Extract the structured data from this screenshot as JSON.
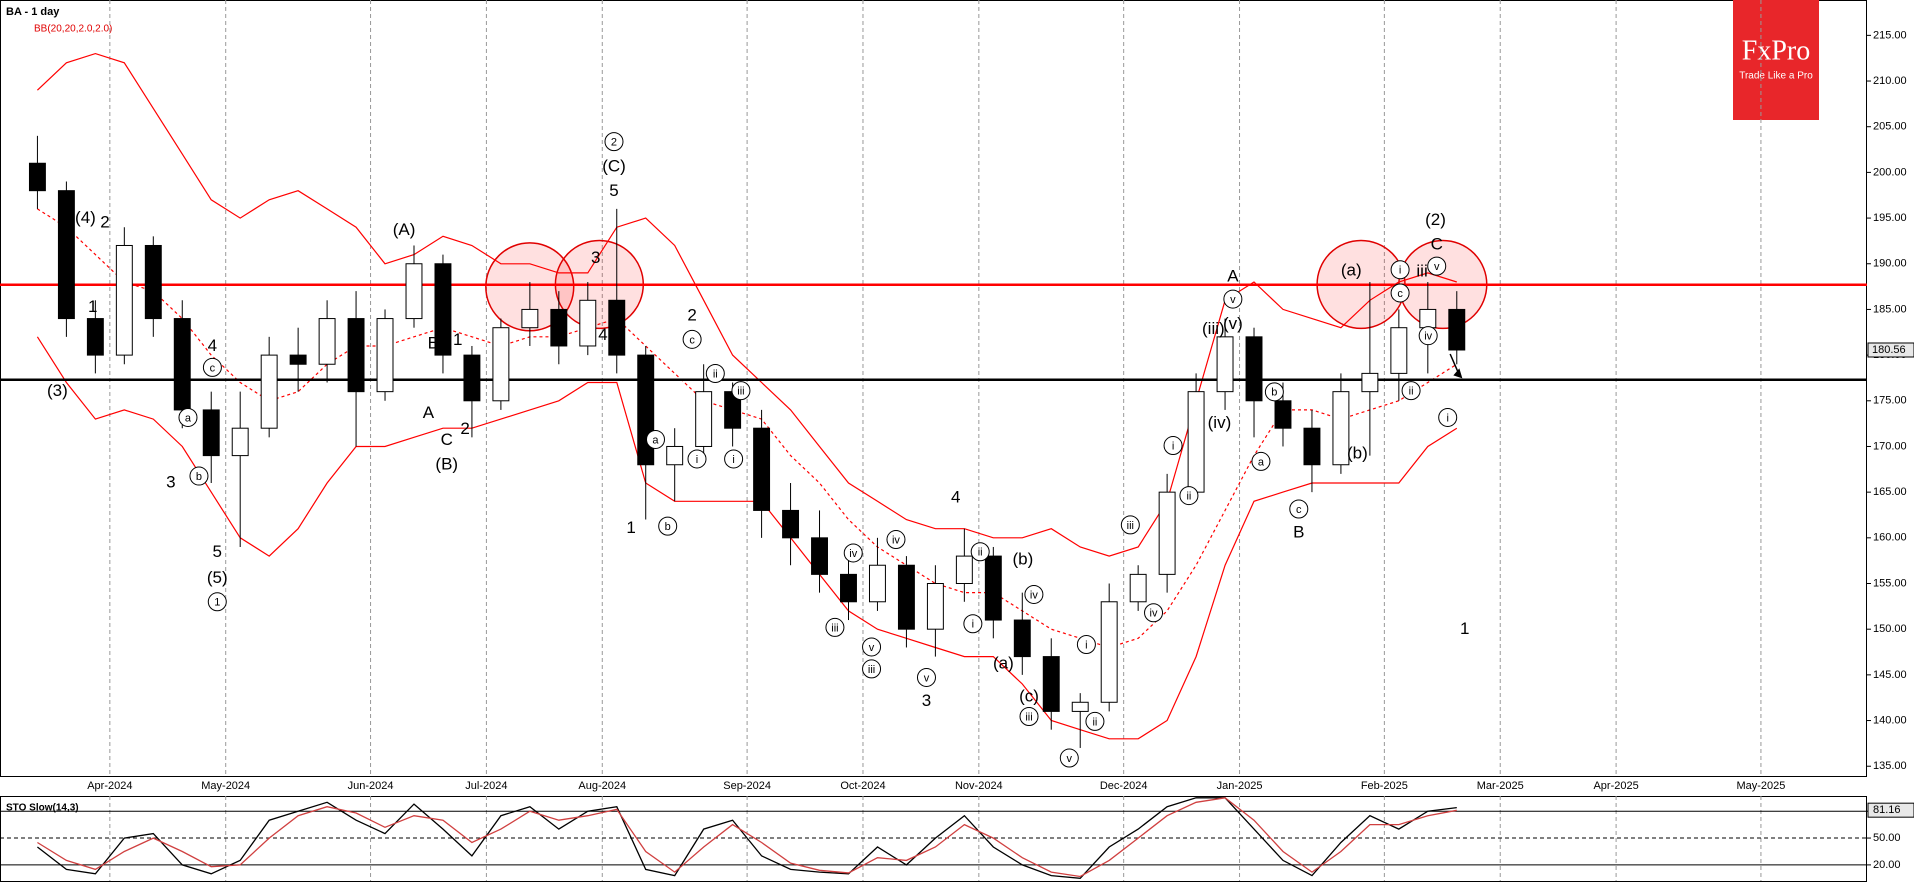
{
  "chart_data": [
    {
      "type": "candlestick",
      "title": "BA - 1 day",
      "indicator_label": "BB(20,20,2.0,2.0)",
      "logo": {
        "name": "FxPro",
        "tagline": "Trade Like a Pro"
      },
      "categories": [
        null,
        null,
        null,
        "Apr-2024",
        null,
        null,
        null,
        "May-2024",
        null,
        null,
        null,
        null,
        "Jun-2024",
        null,
        null,
        null,
        "Jul-2024",
        null,
        null,
        null,
        "Aug-2024",
        null,
        null,
        null,
        null,
        "Sep-2024",
        null,
        null,
        null,
        "Oct-2024",
        null,
        null,
        null,
        "Nov-2024",
        null,
        null,
        null,
        null,
        "Dec-2024",
        null,
        null,
        null,
        "Jan-2025",
        null,
        null,
        null,
        null,
        "Feb-2025",
        null,
        null,
        null,
        "Mar-2025",
        null,
        null,
        null,
        "Apr-2025",
        null,
        null,
        null,
        null,
        "May-2025",
        null
      ],
      "open": [
        201,
        198,
        184,
        180,
        192,
        184,
        174,
        169,
        172,
        180,
        179,
        184,
        176,
        184,
        190,
        180,
        175,
        183,
        185,
        181,
        186,
        180,
        168,
        170,
        176,
        172,
        163,
        160,
        156,
        153,
        157,
        150,
        155,
        158,
        151,
        147,
        141,
        142,
        153,
        156,
        165,
        176,
        182,
        175,
        172,
        168,
        176,
        178,
        183,
        185,
        null,
        null,
        null,
        null,
        null,
        null,
        null,
        null,
        null,
        null,
        null,
        null
      ],
      "high": [
        204,
        199,
        186,
        194,
        193,
        186,
        176,
        176,
        182,
        183,
        186,
        187,
        185,
        192,
        191,
        181,
        184,
        188,
        187,
        188,
        196,
        181,
        172,
        179,
        177,
        174,
        166,
        163,
        158,
        160,
        158,
        157,
        161,
        159,
        154,
        149,
        143,
        155,
        157,
        167,
        178,
        184,
        183,
        177,
        174,
        178,
        188,
        185,
        188,
        187,
        null,
        null,
        null,
        null,
        null,
        null,
        null,
        null,
        null,
        null,
        null,
        null
      ],
      "low": [
        196,
        182,
        178,
        179,
        182,
        172,
        166,
        159,
        171,
        176,
        177,
        170,
        175,
        183,
        178,
        171,
        174,
        181,
        179,
        180,
        178,
        162,
        164,
        168,
        170,
        160,
        157,
        154,
        151,
        152,
        148,
        147,
        153,
        149,
        145,
        139,
        137,
        141,
        152,
        154,
        164,
        174,
        171,
        170,
        165,
        167,
        169,
        175,
        178,
        179,
        null,
        null,
        null,
        null,
        null,
        null,
        null,
        null,
        null,
        null,
        null,
        null
      ],
      "close": [
        198,
        184,
        180,
        192,
        184,
        174,
        169,
        172,
        180,
        179,
        184,
        176,
        184,
        190,
        180,
        175,
        183,
        185,
        181,
        186,
        180,
        168,
        170,
        176,
        172,
        163,
        160,
        156,
        153,
        157,
        150,
        155,
        158,
        151,
        147,
        141,
        142,
        153,
        156,
        165,
        176,
        182,
        175,
        172,
        168,
        176,
        178,
        183,
        185,
        180.56,
        null,
        null,
        null,
        null,
        null,
        null,
        null,
        null,
        null,
        null,
        null,
        null
      ],
      "bands": {
        "color": "#ff0000",
        "upper": [
          209,
          212,
          213,
          212,
          207,
          202,
          197,
          195,
          197,
          198,
          196,
          194,
          190,
          191,
          193,
          192,
          190,
          190,
          189,
          189,
          194,
          195,
          192,
          186,
          180,
          177,
          174,
          170,
          166,
          164,
          162,
          161,
          161,
          160,
          160,
          161,
          159,
          158,
          159,
          164,
          175,
          186,
          188,
          185,
          184,
          183,
          186,
          188,
          189,
          188,
          null,
          null,
          null,
          null,
          null,
          null,
          null,
          null,
          null,
          null,
          null,
          null
        ],
        "middle": [
          196,
          194,
          191,
          188,
          187,
          184,
          180,
          177,
          175,
          176,
          179,
          181,
          181,
          182,
          183,
          182,
          181,
          182,
          182,
          183,
          184,
          181,
          178,
          175,
          174,
          173,
          169,
          166,
          162,
          159,
          157,
          155,
          154,
          154,
          152,
          150,
          149,
          148,
          149,
          152,
          157,
          163,
          169,
          174,
          174,
          173,
          174,
          175,
          177,
          179,
          null,
          null,
          null,
          null,
          null,
          null,
          null,
          null,
          null,
          null,
          null,
          null
        ],
        "lower": [
          182,
          177,
          173,
          174,
          173,
          170,
          165,
          160,
          158,
          161,
          166,
          170,
          170,
          171,
          172,
          172,
          173,
          174,
          175,
          177,
          177,
          166,
          164,
          164,
          164,
          164,
          160,
          156,
          152,
          150,
          149,
          148,
          147,
          147,
          144,
          140,
          139,
          138,
          138,
          140,
          147,
          157,
          164,
          165,
          166,
          166,
          166,
          166,
          170,
          172,
          null,
          null,
          null,
          null,
          null,
          null,
          null,
          null,
          null,
          null,
          null,
          null
        ]
      },
      "levels": [
        {
          "value": 187.7,
          "color": "#ff0000"
        },
        {
          "value": 177.3,
          "color": "#000000"
        }
      ],
      "last_value": 180.56,
      "ylim": [
        133.93,
        218.87
      ],
      "yticks": [
        {
          "value": 135,
          "label": "135.00"
        },
        {
          "value": 140,
          "label": "140.00"
        },
        {
          "value": 145,
          "label": "145.00"
        },
        {
          "value": 150,
          "label": "150.00"
        },
        {
          "value": 155,
          "label": "155.00"
        },
        {
          "value": 160,
          "label": "160.00"
        },
        {
          "value": 165,
          "label": "165.00"
        },
        {
          "value": 170,
          "label": "170.00"
        },
        {
          "value": 175,
          "label": "175.00"
        },
        {
          "value": 180,
          "label": "180.00"
        },
        {
          "value": 185,
          "label": "185.00"
        },
        {
          "value": 190,
          "label": "190.00"
        },
        {
          "value": 195,
          "label": "195.00"
        },
        {
          "value": 200,
          "label": "200.00"
        },
        {
          "value": 205,
          "label": "205.00"
        },
        {
          "value": 210,
          "label": "210.00"
        },
        {
          "value": 215,
          "label": "215.00"
        }
      ],
      "annotations": [
        "(3)",
        "(4)",
        "2",
        "1",
        "a",
        "b",
        "3",
        "4",
        "c",
        "5",
        "(5)",
        "1",
        "(A)",
        "B",
        "1",
        "A",
        "C",
        "2",
        "(B)",
        "3",
        "4",
        "2",
        "(C)",
        "5",
        "1",
        "a",
        "b",
        "2",
        "c",
        "i",
        "ii",
        "iii",
        "i",
        "iv",
        "iii",
        "v",
        "iii",
        "iv",
        "v",
        "3",
        "4",
        "ii",
        "i",
        "(b)",
        "iv",
        "(a)",
        "(c)",
        "iii",
        "i",
        "ii",
        "v",
        "iii",
        "iv",
        "i",
        "ii",
        "(iv)",
        "(iii)",
        "(v)",
        "A",
        "v",
        "b",
        "a",
        "c",
        "B",
        "(a)",
        "(b)",
        "(2)",
        "C",
        "v",
        "i",
        "iii",
        "c",
        "iv",
        "ii",
        "i",
        "1"
      ]
    },
    {
      "type": "line",
      "title": "STO Slow(14,3)",
      "series": [
        {
          "name": "%K",
          "color": "#000000",
          "values": [
            40,
            15,
            10,
            50,
            55,
            20,
            10,
            25,
            70,
            80,
            90,
            70,
            55,
            88,
            60,
            30,
            75,
            85,
            60,
            80,
            85,
            15,
            8,
            60,
            70,
            30,
            15,
            12,
            10,
            40,
            20,
            50,
            75,
            40,
            20,
            8,
            5,
            40,
            60,
            85,
            95,
            95,
            60,
            25,
            8,
            45,
            75,
            60,
            80,
            84,
            null,
            null,
            null,
            null,
            null,
            null,
            null,
            null,
            null,
            null,
            null,
            null
          ]
        },
        {
          "name": "%D",
          "color": "#d04040",
          "values": [
            45,
            25,
            15,
            35,
            50,
            35,
            18,
            20,
            50,
            75,
            85,
            78,
            62,
            75,
            70,
            45,
            60,
            80,
            70,
            75,
            82,
            35,
            12,
            40,
            65,
            45,
            22,
            14,
            11,
            28,
            25,
            40,
            65,
            50,
            28,
            12,
            7,
            25,
            50,
            75,
            90,
            95,
            70,
            35,
            12,
            35,
            65,
            65,
            75,
            81,
            null,
            null,
            null,
            null,
            null,
            null,
            null,
            null,
            null,
            null,
            null,
            null
          ]
        }
      ],
      "last_value": 81.16,
      "levels": [
        80,
        50,
        20
      ],
      "ylim": [
        2,
        97
      ],
      "yticks": [
        {
          "value": 20,
          "label": "20.00"
        },
        {
          "value": 50,
          "label": "50.00"
        },
        {
          "value": 80,
          "label": "80.00"
        }
      ]
    }
  ]
}
